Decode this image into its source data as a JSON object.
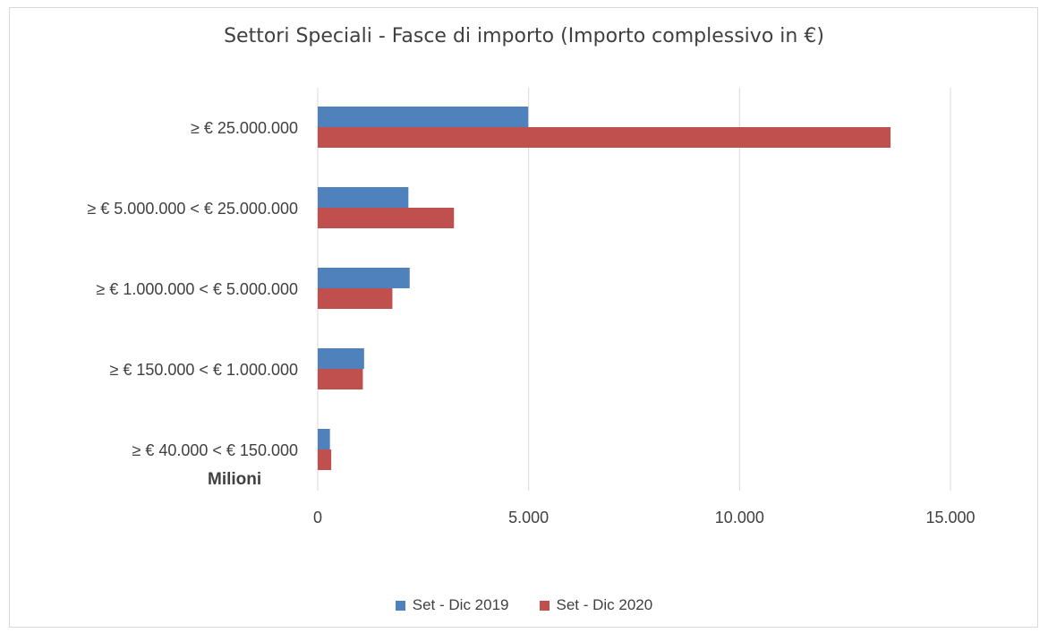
{
  "colors": {
    "series_2019": "#4f81bd",
    "series_2020": "#c0504d",
    "grid": "#d9d9d9",
    "text": "#404040"
  },
  "chart_data": {
    "type": "bar",
    "orientation": "horizontal",
    "title": "Settori Speciali - Fasce di importo (Importo complessivo in €)",
    "unit_label": "Milioni",
    "categories": [
      "≥ € 25.000.000",
      "≥ € 5.000.000 < € 25.000.000",
      "≥ € 1.000.000 < € 5.000.000",
      "≥ € 150.000 < € 1.000.000",
      "≥ € 40.000 < € 150.000"
    ],
    "series": [
      {
        "name": "Set - Dic  2019",
        "values": [
          4990,
          2150,
          2180,
          1100,
          290
        ]
      },
      {
        "name": "Set - Dic  2020",
        "values": [
          13580,
          3230,
          1770,
          1070,
          320
        ]
      }
    ],
    "xlim": [
      0,
      15000
    ],
    "x_ticks": [
      0,
      5000,
      10000,
      15000
    ],
    "x_tick_labels": [
      "0",
      "5.000",
      "10.000",
      "15.000"
    ],
    "grid": true,
    "legend_position": "bottom"
  }
}
